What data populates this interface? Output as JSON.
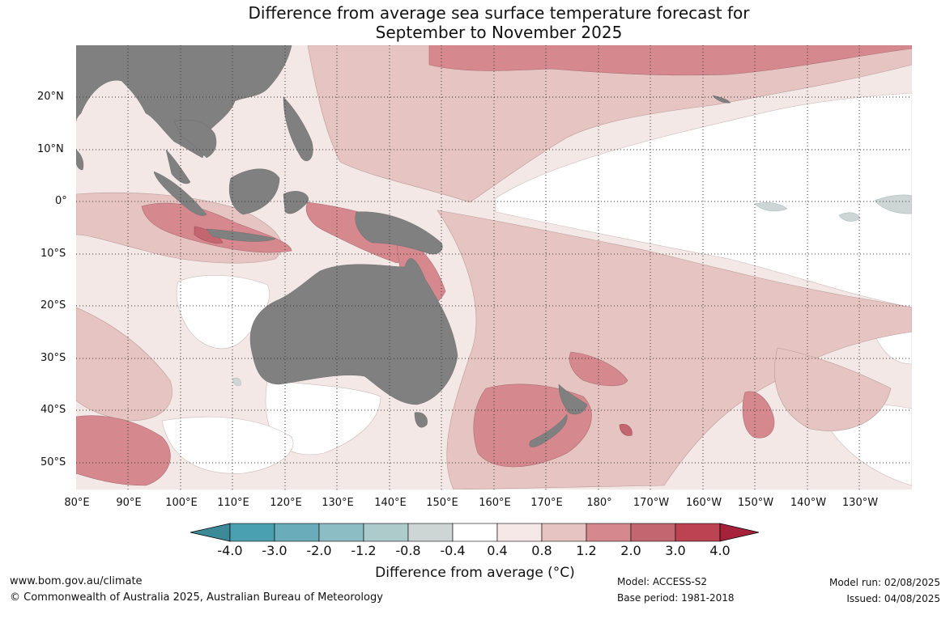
{
  "title": {
    "line1": "Difference from average sea surface temperature forecast for",
    "line2": "September to November 2025"
  },
  "map": {
    "region": "Indian Ocean, Maritime Continent, Australia and Western/Central Pacific",
    "lat_labels": [
      "20°N",
      "10°N",
      "0°",
      "10°S",
      "20°S",
      "30°S",
      "40°S",
      "50°S"
    ],
    "lon_labels": [
      "80°E",
      "90°E",
      "100°E",
      "110°E",
      "120°E",
      "130°E",
      "140°E",
      "150°E",
      "160°E",
      "170°E",
      "180°",
      "170°W",
      "160°W",
      "150°W",
      "140°W",
      "130°W"
    ],
    "land_color": "#808080",
    "ocean_background": "#f4e8e6",
    "gridlines": "dotted"
  },
  "colorbar": {
    "ticks": [
      "-4.0",
      "-3.0",
      "-2.0",
      "-1.2",
      "-0.8",
      "-0.4",
      "0.4",
      "0.8",
      "1.2",
      "2.0",
      "3.0",
      "4.0"
    ],
    "colors": [
      "#3c8a98",
      "#4a9fb0",
      "#6aacb9",
      "#8cbcc4",
      "#aecbcc",
      "#cdd6d5",
      "#ffffff",
      "#f5e8e6",
      "#e6c4c1",
      "#d5898f",
      "#c46670",
      "#bc4352",
      "#a6213a"
    ],
    "label": "Difference from average (°C)"
  },
  "footer": {
    "website": "www.bom.gov.au/climate",
    "copyright": "© Commonwealth of Australia 2025, Australian Bureau of Meteorology",
    "model": "Model: ACCESS-S2",
    "base_period": "Base period: 1981-2018",
    "model_run": "Model run: 02/08/2025",
    "issued": "Issued: 04/08/2025"
  }
}
